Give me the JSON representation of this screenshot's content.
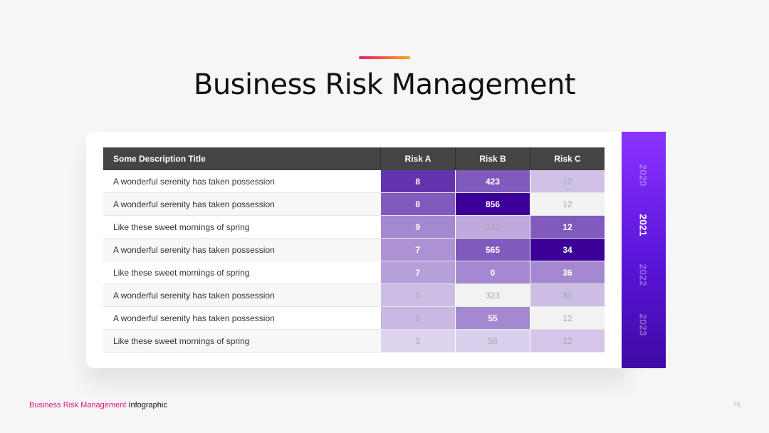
{
  "slide": {
    "title": "Business Risk Management",
    "accent_colors": [
      "#ec1c6b",
      "#f7a51c"
    ],
    "page_number": "76"
  },
  "table": {
    "headers": [
      "Some Description Title",
      "Risk A",
      "Risk B",
      "Risk C"
    ],
    "rows": [
      {
        "label": "A wonderful serenity has taken possession",
        "values": [
          "8",
          "423",
          "12"
        ],
        "shades": [
          0.78,
          0.62,
          0.18
        ]
      },
      {
        "label": "A wonderful serenity has taken possession",
        "values": [
          "8",
          "856",
          "12"
        ],
        "shades": [
          0.62,
          1.0,
          0.0
        ]
      },
      {
        "label": "Like these sweet mornings of spring",
        "values": [
          "9",
          "343",
          "12"
        ],
        "shades": [
          0.42,
          0.28,
          0.62
        ]
      },
      {
        "label": "A wonderful serenity has taken possession",
        "values": [
          "7",
          "565",
          "34"
        ],
        "shades": [
          0.38,
          0.62,
          1.0
        ]
      },
      {
        "label": "Like these sweet mornings of spring",
        "values": [
          "7",
          "0",
          "36"
        ],
        "shades": [
          0.32,
          0.42,
          0.42
        ]
      },
      {
        "label": "A wonderful serenity has taken possession",
        "values": [
          "0",
          "323",
          "80"
        ],
        "shades": [
          0.2,
          0.0,
          0.2
        ]
      },
      {
        "label": "A wonderful serenity has taken possession",
        "values": [
          "6",
          "55",
          "12"
        ],
        "shades": [
          0.22,
          0.42,
          0.0
        ]
      },
      {
        "label": "Like these sweet mornings of spring",
        "values": [
          "3",
          "58",
          "12"
        ],
        "shades": [
          0.1,
          0.12,
          0.16
        ]
      }
    ],
    "header_color": "#444444",
    "heat_dark": "#3c0099",
    "heat_light": "#f0ecf8"
  },
  "years": {
    "items": [
      "2020",
      "2021",
      "2022",
      "2023"
    ],
    "active": "2021"
  },
  "footer": {
    "highlight": "Business Risk Management",
    "rest": "Infographic"
  }
}
